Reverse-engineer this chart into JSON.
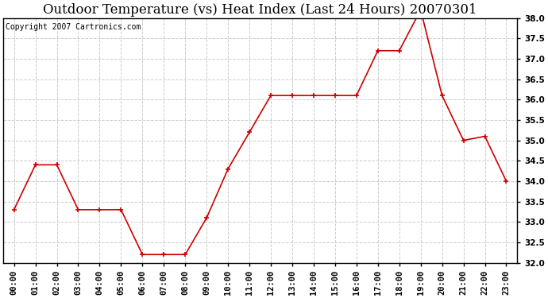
{
  "title": "Outdoor Temperature (vs) Heat Index (Last 24 Hours) 20070301",
  "copyright_text": "Copyright 2007 Cartronics.com",
  "x_labels": [
    "00:00",
    "01:00",
    "02:00",
    "03:00",
    "04:00",
    "05:00",
    "06:00",
    "07:00",
    "08:00",
    "09:00",
    "10:00",
    "11:00",
    "12:00",
    "13:00",
    "14:00",
    "15:00",
    "16:00",
    "17:00",
    "18:00",
    "19:00",
    "20:00",
    "21:00",
    "22:00",
    "23:00"
  ],
  "y_values": [
    33.3,
    34.4,
    34.4,
    33.3,
    33.3,
    33.3,
    32.2,
    32.2,
    32.2,
    33.1,
    34.3,
    35.2,
    36.1,
    36.1,
    36.1,
    36.1,
    36.1,
    37.2,
    37.2,
    38.2,
    36.1,
    35.0,
    35.1,
    34.0
  ],
  "line_color": "#cc0000",
  "marker": "+",
  "marker_size": 5,
  "ylim": [
    32.0,
    38.0
  ],
  "yticks": [
    32.0,
    32.5,
    33.0,
    33.5,
    34.0,
    34.5,
    35.0,
    35.5,
    36.0,
    36.5,
    37.0,
    37.5,
    38.0
  ],
  "background_color": "#ffffff",
  "grid_color": "#cccccc",
  "title_fontsize": 12,
  "copyright_fontsize": 7,
  "tick_fontsize": 7.5,
  "border_color": "#000000"
}
